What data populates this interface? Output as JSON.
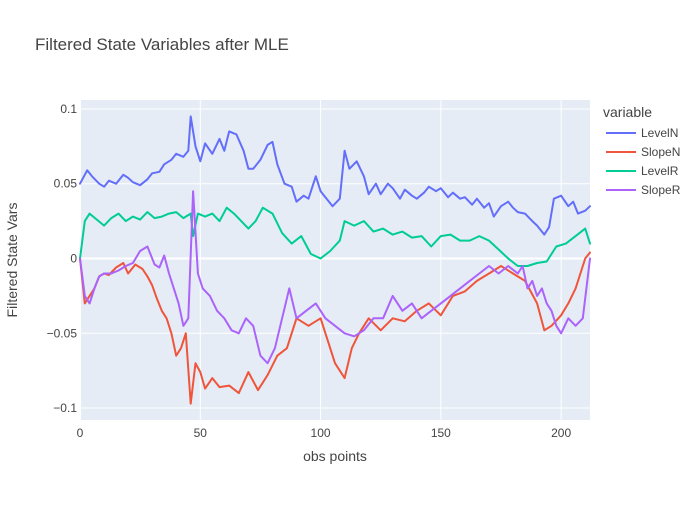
{
  "chart_data": {
    "type": "line",
    "title": "Filtered State Variables after MLE",
    "xlabel": "obs points",
    "ylabel": "Filtered State Vars",
    "legend_title": "variable",
    "legend_position": "right",
    "grid": true,
    "xlim": [
      0,
      212
    ],
    "ylim": [
      -0.108,
      0.106
    ],
    "x_ticks": [
      0,
      50,
      100,
      150,
      200
    ],
    "x_tick_labels": [
      "0",
      "50",
      "100",
      "150",
      "200"
    ],
    "y_ticks": [
      -0.1,
      -0.05,
      0,
      0.05,
      0.1
    ],
    "y_tick_labels": [
      "−0.1",
      "−0.05",
      "0",
      "0.05",
      "0.1"
    ],
    "colors": {
      "plot_bg": "#e5ecf6",
      "grid": "#ffffff",
      "zero_line": "#ffffff"
    },
    "series": [
      {
        "name": "LevelN",
        "color": "#636efa",
        "x": [
          0,
          3,
          5,
          8,
          10,
          12,
          15,
          18,
          20,
          22,
          25,
          28,
          30,
          33,
          35,
          38,
          40,
          43,
          45,
          46,
          48,
          50,
          52,
          55,
          58,
          60,
          62,
          65,
          68,
          70,
          72,
          75,
          78,
          80,
          82,
          85,
          88,
          90,
          93,
          95,
          98,
          100,
          102,
          105,
          108,
          110,
          112,
          115,
          118,
          120,
          123,
          125,
          128,
          130,
          133,
          135,
          138,
          140,
          143,
          145,
          148,
          150,
          153,
          155,
          158,
          160,
          163,
          165,
          168,
          170,
          172,
          175,
          178,
          180,
          182,
          185,
          188,
          190,
          193,
          195,
          197,
          200,
          203,
          205,
          207,
          210,
          212
        ],
        "y": [
          0.05,
          0.059,
          0.055,
          0.05,
          0.048,
          0.052,
          0.05,
          0.056,
          0.054,
          0.051,
          0.049,
          0.053,
          0.057,
          0.058,
          0.063,
          0.066,
          0.07,
          0.068,
          0.072,
          0.095,
          0.075,
          0.065,
          0.077,
          0.07,
          0.08,
          0.072,
          0.085,
          0.083,
          0.072,
          0.06,
          0.06,
          0.066,
          0.076,
          0.078,
          0.063,
          0.05,
          0.048,
          0.038,
          0.042,
          0.04,
          0.055,
          0.045,
          0.041,
          0.035,
          0.04,
          0.072,
          0.06,
          0.065,
          0.055,
          0.043,
          0.05,
          0.043,
          0.05,
          0.047,
          0.04,
          0.046,
          0.042,
          0.04,
          0.044,
          0.048,
          0.045,
          0.047,
          0.041,
          0.044,
          0.04,
          0.041,
          0.036,
          0.04,
          0.034,
          0.037,
          0.028,
          0.035,
          0.038,
          0.034,
          0.031,
          0.03,
          0.025,
          0.022,
          0.016,
          0.021,
          0.04,
          0.042,
          0.035,
          0.038,
          0.03,
          0.032,
          0.035
        ]
      },
      {
        "name": "SlopeN",
        "color": "#ef553b",
        "x": [
          0,
          2,
          4,
          6,
          8,
          10,
          12,
          15,
          18,
          20,
          23,
          26,
          28,
          30,
          32,
          34,
          36,
          38,
          40,
          42,
          44,
          46,
          48,
          50,
          52,
          55,
          58,
          62,
          66,
          70,
          74,
          78,
          82,
          86,
          90,
          95,
          100,
          103,
          106,
          110,
          113,
          116,
          120,
          125,
          130,
          135,
          140,
          145,
          150,
          155,
          160,
          165,
          170,
          175,
          180,
          185,
          190,
          193,
          196,
          200,
          203,
          206,
          208,
          210,
          212
        ],
        "y": [
          0,
          -0.03,
          -0.025,
          -0.02,
          -0.012,
          -0.01,
          -0.011,
          -0.006,
          -0.003,
          -0.01,
          -0.004,
          -0.007,
          -0.012,
          -0.018,
          -0.027,
          -0.035,
          -0.04,
          -0.05,
          -0.065,
          -0.06,
          -0.05,
          -0.097,
          -0.07,
          -0.076,
          -0.087,
          -0.08,
          -0.086,
          -0.085,
          -0.09,
          -0.076,
          -0.088,
          -0.078,
          -0.065,
          -0.06,
          -0.04,
          -0.045,
          -0.04,
          -0.055,
          -0.07,
          -0.08,
          -0.06,
          -0.05,
          -0.04,
          -0.048,
          -0.04,
          -0.042,
          -0.035,
          -0.03,
          -0.038,
          -0.025,
          -0.022,
          -0.015,
          -0.01,
          -0.005,
          -0.01,
          -0.015,
          -0.03,
          -0.048,
          -0.045,
          -0.038,
          -0.03,
          -0.02,
          -0.01,
          0,
          0.004
        ]
      },
      {
        "name": "LevelR",
        "color": "#00cc96",
        "x": [
          0,
          2,
          4,
          7,
          10,
          13,
          16,
          19,
          22,
          25,
          28,
          31,
          34,
          37,
          40,
          43,
          46,
          47,
          49,
          52,
          55,
          58,
          61,
          64,
          67,
          70,
          73,
          76,
          80,
          84,
          88,
          92,
          96,
          100,
          104,
          108,
          110,
          114,
          118,
          122,
          126,
          130,
          134,
          138,
          142,
          146,
          150,
          154,
          158,
          162,
          166,
          170,
          174,
          178,
          182,
          186,
          190,
          194,
          198,
          202,
          206,
          210,
          212
        ],
        "y": [
          0,
          0.025,
          0.03,
          0.026,
          0.022,
          0.027,
          0.03,
          0.025,
          0.028,
          0.026,
          0.031,
          0.027,
          0.028,
          0.03,
          0.031,
          0.027,
          0.03,
          0.015,
          0.03,
          0.028,
          0.03,
          0.025,
          0.034,
          0.03,
          0.025,
          0.02,
          0.025,
          0.034,
          0.03,
          0.017,
          0.01,
          0.015,
          0.003,
          0.0,
          0.005,
          0.012,
          0.025,
          0.022,
          0.025,
          0.018,
          0.02,
          0.016,
          0.018,
          0.014,
          0.015,
          0.008,
          0.015,
          0.016,
          0.012,
          0.012,
          0.015,
          0.012,
          0.006,
          0.0,
          -0.005,
          -0.005,
          -0.003,
          -0.002,
          0.008,
          0.01,
          0.015,
          0.02,
          0.01
        ]
      },
      {
        "name": "SlopeR",
        "color": "#ab63fa",
        "x": [
          0,
          2,
          4,
          6,
          8,
          10,
          13,
          16,
          19,
          22,
          25,
          28,
          31,
          33,
          35,
          37,
          39,
          41,
          43,
          45,
          47,
          49,
          51,
          54,
          57,
          60,
          63,
          66,
          69,
          72,
          75,
          78,
          81,
          84,
          87,
          90,
          94,
          98,
          102,
          106,
          110,
          114,
          118,
          122,
          126,
          130,
          134,
          138,
          142,
          146,
          150,
          154,
          158,
          162,
          166,
          170,
          174,
          178,
          182,
          184,
          186,
          188,
          190,
          192,
          194,
          196,
          198,
          200,
          203,
          206,
          209,
          212
        ],
        "y": [
          0,
          -0.025,
          -0.03,
          -0.02,
          -0.012,
          -0.01,
          -0.01,
          -0.008,
          -0.005,
          -0.003,
          0.005,
          0.008,
          -0.004,
          -0.006,
          0.002,
          -0.01,
          -0.02,
          -0.03,
          -0.045,
          -0.04,
          0.045,
          -0.01,
          -0.02,
          -0.025,
          -0.035,
          -0.04,
          -0.048,
          -0.05,
          -0.04,
          -0.045,
          -0.065,
          -0.07,
          -0.06,
          -0.04,
          -0.02,
          -0.04,
          -0.035,
          -0.03,
          -0.04,
          -0.045,
          -0.05,
          -0.052,
          -0.048,
          -0.04,
          -0.04,
          -0.025,
          -0.035,
          -0.03,
          -0.04,
          -0.035,
          -0.03,
          -0.025,
          -0.02,
          -0.015,
          -0.01,
          -0.005,
          -0.01,
          -0.005,
          -0.01,
          -0.005,
          -0.02,
          -0.015,
          -0.025,
          -0.02,
          -0.03,
          -0.035,
          -0.045,
          -0.05,
          -0.04,
          -0.045,
          -0.04,
          0
        ]
      }
    ]
  }
}
